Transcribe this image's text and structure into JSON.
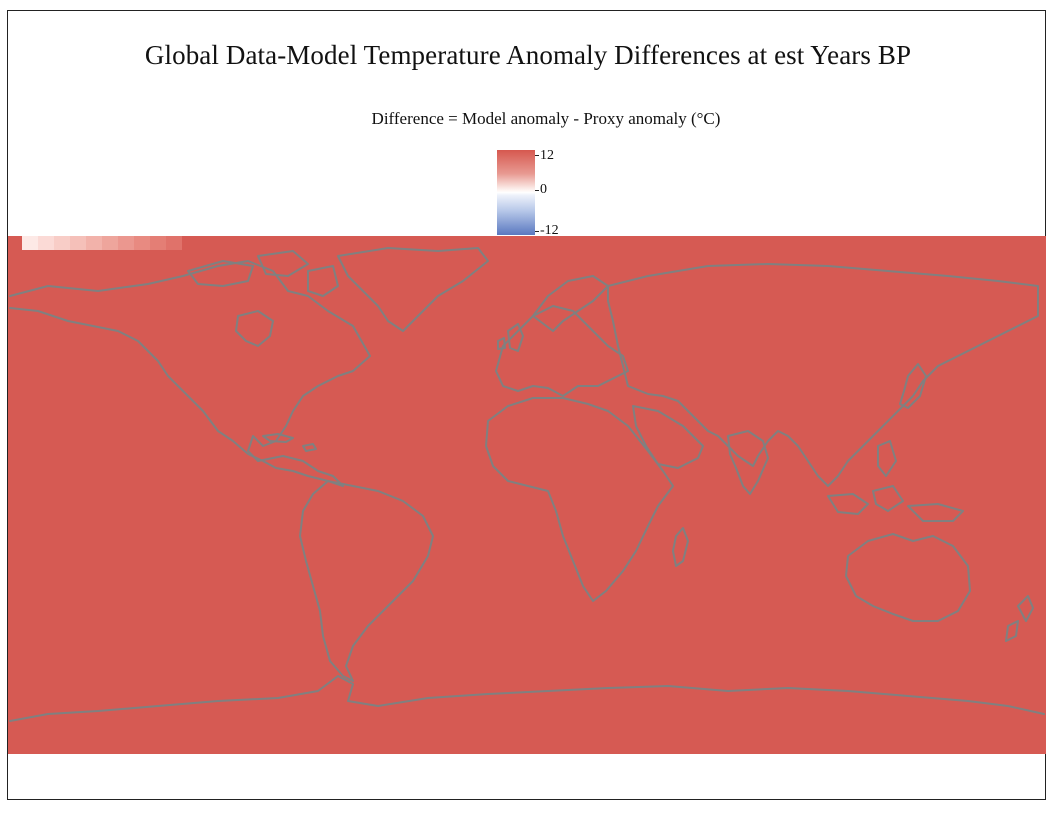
{
  "title": "Global Data-Model Temperature Anomaly Differences at est Years BP",
  "subtitle": "Difference = Model anomaly - Proxy anomaly (°C)",
  "colorbar": {
    "max_label": "12",
    "mid_label": "0",
    "min_label": "-12",
    "colors": {
      "high": "#d6584f",
      "mid": "#ffffff",
      "low": "#5a78c0"
    }
  },
  "legend_swatch_colors": [
    "#fde9e6",
    "#fbdad6",
    "#f8cdc7",
    "#f5c0b9",
    "#f2b2aa",
    "#eea59c",
    "#eb978f",
    "#e88a81",
    "#e47e75",
    "#e0726a"
  ],
  "map": {
    "fill_color": "#d65a53",
    "coastline_color": "#808080",
    "projection": "equirectangular"
  }
}
